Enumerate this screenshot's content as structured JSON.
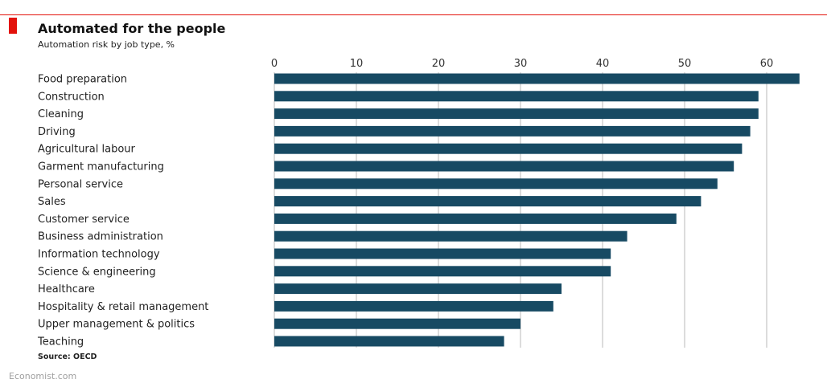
{
  "header": {
    "title": "Automated for the people",
    "subtitle": "Automation risk by job type, %",
    "source": "Source: OECD",
    "brand": "Economist.com"
  },
  "colors": {
    "bar": "#174a63",
    "accent": "#e3120b",
    "grid": "#b9b9b9"
  },
  "chart_data": {
    "type": "bar",
    "orientation": "horizontal",
    "title": "Automated for the people",
    "subtitle": "Automation risk by job type, %",
    "xlim": [
      0,
      65
    ],
    "ticks": [
      0,
      10,
      20,
      30,
      40,
      50,
      60
    ],
    "grid": true,
    "categories": [
      "Food preparation",
      "Construction",
      "Cleaning",
      "Driving",
      "Agricultural labour",
      "Garment manufacturing",
      "Personal service",
      "Sales",
      "Customer service",
      "Business administration",
      "Information technology",
      "Science & engineering",
      "Healthcare",
      "Hospitality & retail management",
      "Upper management & politics",
      "Teaching"
    ],
    "values": [
      64,
      59,
      59,
      58,
      57,
      56,
      54,
      52,
      49,
      43,
      41,
      41,
      35,
      34,
      30,
      28
    ]
  }
}
